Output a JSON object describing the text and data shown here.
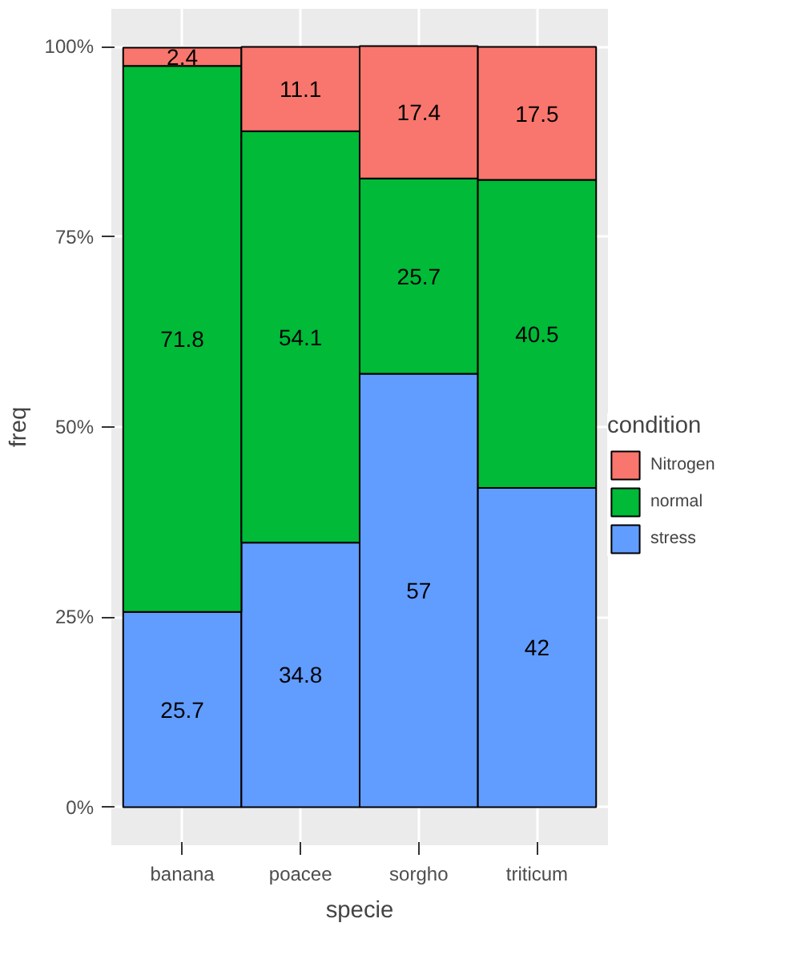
{
  "chart_data": {
    "type": "bar",
    "xlabel": "specie",
    "ylabel": "freq",
    "legend_title": "condition",
    "categories": [
      "banana",
      "poacee",
      "sorgho",
      "triticum"
    ],
    "stacked": true,
    "data_labels": true,
    "grid": true,
    "legend": "right",
    "ylim": [
      -5,
      105
    ],
    "yticks": [
      {
        "value": 0,
        "label": "0%"
      },
      {
        "value": 25,
        "label": "25%"
      },
      {
        "value": 50,
        "label": "50%"
      },
      {
        "value": 75,
        "label": "75%"
      },
      {
        "value": 100,
        "label": "100%"
      }
    ],
    "series": [
      {
        "name": "stress",
        "color": "#619cff",
        "values": [
          25.7,
          34.8,
          57,
          42
        ]
      },
      {
        "name": "normal",
        "color": "#00ba38",
        "values": [
          71.8,
          54.1,
          25.7,
          40.5
        ]
      },
      {
        "name": "Nitrogen",
        "color": "#f8766d",
        "values": [
          2.4,
          11.1,
          17.4,
          17.5
        ]
      }
    ]
  }
}
